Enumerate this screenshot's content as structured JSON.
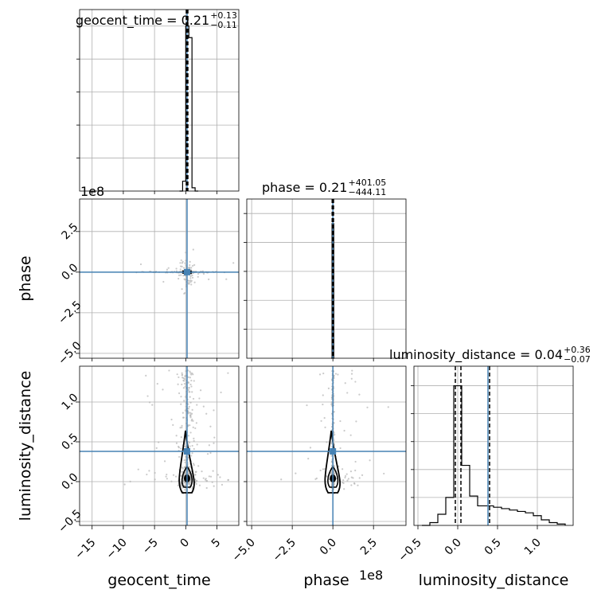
{
  "chart_data": {
    "type": "corner",
    "parameters": [
      "geocent_time",
      "phase",
      "luminosity_distance"
    ],
    "truths": [
      0.21,
      0.21,
      0.38
    ],
    "colors": {
      "truth": "#4682b4",
      "hist": "#000000",
      "points": "#b4b4b4",
      "grid": "#b0b0b0"
    },
    "titles": [
      {
        "name": "geocent_time",
        "value": "0.21",
        "plus": "+0.13",
        "minus": "−0.11",
        "quantiles": [
          0.1,
          0.21,
          0.34
        ]
      },
      {
        "name": "phase",
        "value": "0.21",
        "plus": "+401.05",
        "minus": "−444.11",
        "quantiles": [
          -4400000.0,
          0.21,
          4000000.0
        ]
      },
      {
        "name": "luminosity_distance",
        "value": "0.04",
        "plus": "+0.36",
        "minus": "−0.07",
        "quantiles": [
          -0.03,
          0.04,
          0.4
        ]
      }
    ],
    "axes": {
      "geocent_time": {
        "range": [
          -17,
          8.5
        ],
        "ticks": [
          -15,
          -10,
          -5,
          0,
          5
        ],
        "ticklabels": [
          "−15",
          "−10",
          "−5",
          "0",
          "5"
        ]
      },
      "phase": {
        "range": [
          -530000000.0,
          450000000.0
        ],
        "ticks": [
          -500000000.0,
          -250000000.0,
          0.0,
          250000000.0
        ],
        "ticklabels": [
          "−5.0",
          "−2.5",
          "0.0",
          "2.5"
        ],
        "offset": "1e8"
      },
      "luminosity_distance": {
        "range": [
          -0.55,
          1.45
        ],
        "ticks": [
          -0.5,
          0.0,
          0.5,
          1.0
        ],
        "ticklabels": [
          "−0.5",
          "0.0",
          "0.5",
          "1.0"
        ]
      }
    },
    "marginals": [
      {
        "param": "geocent_time",
        "ylim": [
          0,
          1.1
        ],
        "bins": [
          [
            -1.0,
            -0.5,
            0.0
          ],
          [
            -0.5,
            0.0,
            0.06
          ],
          [
            0.0,
            0.5,
            1.0
          ],
          [
            0.5,
            1.0,
            0.93
          ],
          [
            1.0,
            1.5,
            0.02
          ],
          [
            1.5,
            2.0,
            0.0
          ]
        ]
      },
      {
        "param": "phase",
        "ylim": [
          0,
          1.1
        ],
        "bins": [
          [
            -10000000.0,
            -5000000.0,
            0.0
          ],
          [
            -5000000.0,
            5000000.0,
            0.93
          ],
          [
            5000000.0,
            10000000.0,
            0.0
          ]
        ]
      },
      {
        "param": "luminosity_distance",
        "ylim": [
          0,
          1.14
        ],
        "bins": [
          [
            -0.45,
            -0.35,
            0.0
          ],
          [
            -0.35,
            -0.25,
            0.02
          ],
          [
            -0.25,
            -0.15,
            0.08
          ],
          [
            -0.15,
            -0.05,
            0.2
          ],
          [
            -0.05,
            0.05,
            1.0
          ],
          [
            0.05,
            0.15,
            0.43
          ],
          [
            0.15,
            0.25,
            0.21
          ],
          [
            0.25,
            0.35,
            0.14
          ],
          [
            0.35,
            0.45,
            0.14
          ],
          [
            0.45,
            0.55,
            0.13
          ],
          [
            0.55,
            0.65,
            0.12
          ],
          [
            0.65,
            0.75,
            0.11
          ],
          [
            0.75,
            0.85,
            0.1
          ],
          [
            0.85,
            0.95,
            0.09
          ],
          [
            0.95,
            1.05,
            0.07
          ],
          [
            1.05,
            1.15,
            0.04
          ],
          [
            1.15,
            1.25,
            0.02
          ],
          [
            1.25,
            1.35,
            0.01
          ]
        ]
      }
    ]
  }
}
